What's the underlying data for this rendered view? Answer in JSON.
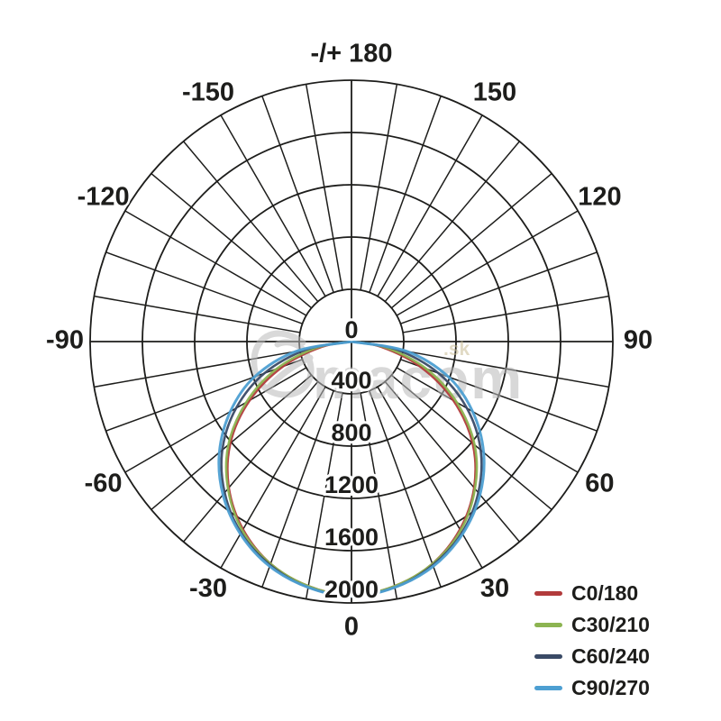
{
  "chart_data": {
    "type": "line",
    "subtype": "polar-photometric",
    "title": "",
    "angle_unit": "degrees",
    "rlim": [
      0,
      2000
    ],
    "radial_grid_step": 400,
    "angle_grid_step_deg": 10,
    "grid_on": true,
    "legend_position": "bottom-right",
    "radial_ticks": [
      "0",
      "400",
      "800",
      "1200",
      "1600",
      "2000"
    ],
    "radial_tick_values": [
      0,
      400,
      800,
      1200,
      1600,
      2000
    ],
    "angle_ticks": [
      {
        "label": "-/+ 180",
        "deg_from_top": 0
      },
      {
        "label": "150",
        "deg_from_top": 30
      },
      {
        "label": "120",
        "deg_from_top": 60
      },
      {
        "label": "90",
        "deg_from_top": 90
      },
      {
        "label": "60",
        "deg_from_top": 120
      },
      {
        "label": "30",
        "deg_from_top": 150
      },
      {
        "label": "0",
        "deg_from_top": 180
      },
      {
        "label": "-30",
        "deg_from_top": 210
      },
      {
        "label": "-60",
        "deg_from_top": 240
      },
      {
        "label": "-90",
        "deg_from_top": 270
      },
      {
        "label": "-120",
        "deg_from_top": 300
      },
      {
        "label": "-150",
        "deg_from_top": 330
      }
    ],
    "x": [
      -90,
      -80,
      -70,
      -60,
      -50,
      -40,
      -30,
      -20,
      -10,
      0,
      10,
      20,
      30,
      40,
      50,
      60,
      70,
      80,
      90
    ],
    "series": [
      {
        "name": "C0/180",
        "color": "#b23b3c",
        "values": [
          0,
          230,
          560,
          900,
          1210,
          1460,
          1660,
          1810,
          1900,
          1940,
          1900,
          1810,
          1660,
          1460,
          1210,
          900,
          560,
          230,
          0
        ]
      },
      {
        "name": "C30/210",
        "color": "#8cb451",
        "values": [
          0,
          270,
          610,
          930,
          1230,
          1470,
          1670,
          1810,
          1900,
          1940,
          1900,
          1810,
          1670,
          1470,
          1230,
          930,
          610,
          270,
          0
        ]
      },
      {
        "name": "C60/240",
        "color": "#3a4a66",
        "values": [
          0,
          350,
          710,
          1020,
          1290,
          1510,
          1690,
          1820,
          1910,
          1945,
          1910,
          1820,
          1690,
          1510,
          1290,
          1020,
          710,
          350,
          0
        ]
      },
      {
        "name": "C90/270",
        "color": "#4d9fd2",
        "values": [
          0,
          430,
          790,
          1070,
          1320,
          1530,
          1700,
          1830,
          1910,
          1950,
          1910,
          1830,
          1700,
          1530,
          1320,
          1070,
          790,
          430,
          0
        ]
      }
    ]
  },
  "legend": {
    "items": [
      {
        "label": "C0/180",
        "color": "#b23b3c"
      },
      {
        "label": "C30/210",
        "color": "#8cb451"
      },
      {
        "label": "C60/240",
        "color": "#3a4a66"
      },
      {
        "label": "C90/270",
        "color": "#4d9fd2"
      }
    ]
  },
  "watermark": {
    "text": "macom",
    "suffix": ".sk"
  },
  "colors": {
    "background": "#ffffff",
    "grid": "#1d1d1b",
    "label": "#1d1d1b",
    "watermark_text": "#b9b9b9",
    "watermark_suffix": "#c9bd94"
  }
}
